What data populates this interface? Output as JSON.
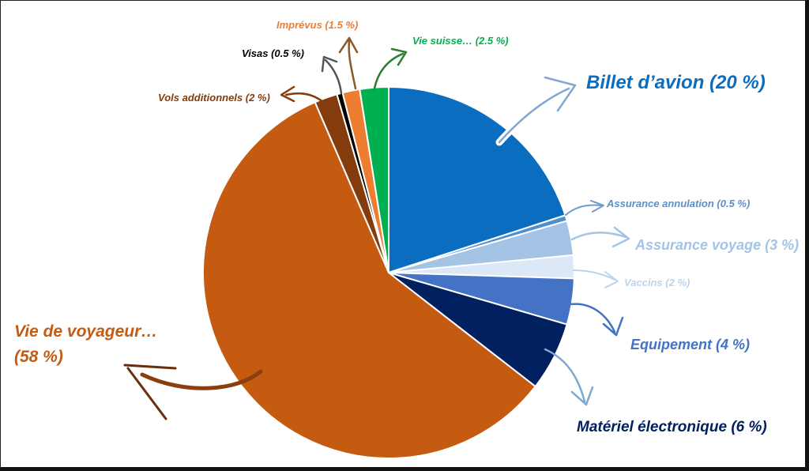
{
  "chart_data": {
    "type": "pie",
    "title": "",
    "start": "top",
    "direction": "clockwise",
    "slices": [
      {
        "label": "Billet d’avion (20 %)",
        "value": 20,
        "color": "#0A6DC0"
      },
      {
        "label": "Assurance annulation (0.5 %)",
        "value": 0.5,
        "color": "#4D8FD0"
      },
      {
        "label": "Assurance voyage (3 %)",
        "value": 3,
        "color": "#A4C4E6"
      },
      {
        "label": "Vaccins (2 %)",
        "value": 2,
        "color": "#DCE8F5"
      },
      {
        "label": "Equipement (4 %)",
        "value": 4,
        "color": "#4472C4"
      },
      {
        "label": "Matériel électronique (6 %)",
        "value": 6,
        "color": "#002060"
      },
      {
        "label": "Vie de voyageur… (58 %)",
        "value": 58,
        "color": "#C55A11"
      },
      {
        "label": "Vols additionnels (2 %)",
        "value": 2,
        "color": "#843C0C"
      },
      {
        "label": "Visas (0.5 %)",
        "value": 0.5,
        "color": "#000000"
      },
      {
        "label": "Imprévus (1.5 %)",
        "value": 1.5,
        "color": "#ED7D31"
      },
      {
        "label": "Vie suisse… (2.5 %)",
        "value": 2.5,
        "color": "#00B050"
      }
    ],
    "labels": {
      "billet": "Billet d’avion (20 %)",
      "annulation": "Assurance annulation (0.5 %)",
      "voyage": "Assurance voyage (3 %)",
      "vaccins": "Vaccins (2 %)",
      "equipement": "Equipement (4 %)",
      "electronique": "Matériel électronique (6 %)",
      "vie_voyageur_1": "Vie de voyageur…",
      "vie_voyageur_2": "(58 %)",
      "vols": "Vols additionnels (2 %)",
      "visas": "Visas (0.5 %)",
      "imprevus": "Imprévus (1.5 %)",
      "vie_suisse": "Vie suisse… (2.5 %)"
    }
  }
}
